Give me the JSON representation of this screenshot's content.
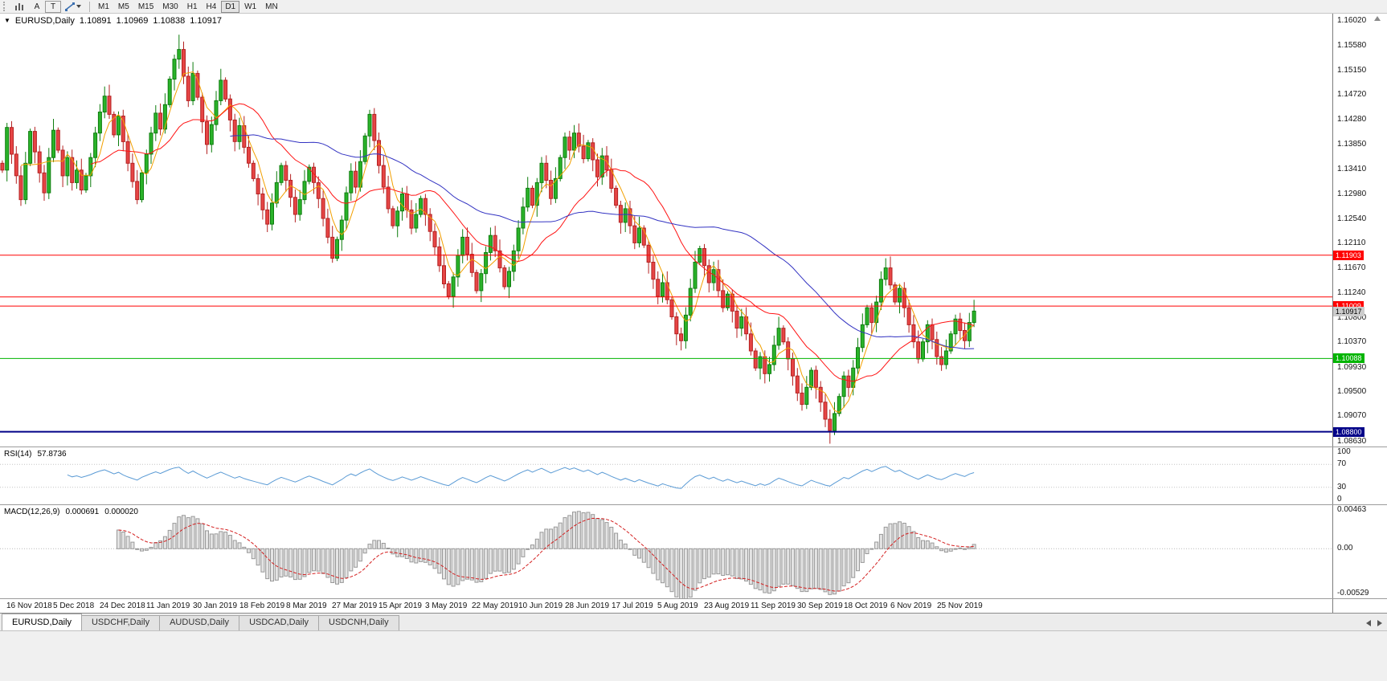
{
  "toolbar": {
    "timeframes": [
      "M1",
      "M5",
      "M15",
      "M30",
      "H1",
      "H4",
      "D1",
      "W1",
      "MN"
    ],
    "active_timeframe": "D1",
    "text_tool_label": "A",
    "template_tool_label": "T"
  },
  "chart": {
    "header": {
      "collapse_glyph": "▼",
      "symbol": "EURUSD,Daily",
      "open": "1.10891",
      "high": "1.10969",
      "low": "1.10838",
      "close": "1.10917"
    },
    "scale": {
      "max": 1.1615,
      "min": 1.0854
    },
    "price_axis_labels": [
      "1.16020",
      "1.15580",
      "1.15150",
      "1.14720",
      "1.14280",
      "1.13850",
      "1.13410",
      "1.12980",
      "1.12540",
      "1.12110",
      "1.11670",
      "1.11240",
      "1.10800",
      "1.10370",
      "1.09930",
      "1.09500",
      "1.09070",
      "1.08630"
    ],
    "hlines": [
      {
        "price": 1.11903,
        "label": "1.11903",
        "color": "#FF0000",
        "width": 1
      },
      {
        "price": 1.1117,
        "color": "#FF0000",
        "width": 1
      },
      {
        "price": 1.11009,
        "label": "1.11009",
        "color": "#FF0000",
        "width": 1
      },
      {
        "price": 1.10088,
        "label": "1.10088",
        "color": "#00B400",
        "width": 1
      },
      {
        "price": 1.088,
        "label": "1.08800",
        "color": "#000088",
        "width": 2
      }
    ],
    "current_price_tag": {
      "label": "1.10917",
      "bg": "#cccccc",
      "fg": "#000000"
    }
  },
  "rsi": {
    "title": "RSI(14)",
    "value": "57.8736",
    "levels": [
      "100",
      "70",
      "30",
      "0"
    ],
    "level_lines": [
      70,
      30
    ],
    "line_color": "#5b9bd5"
  },
  "macd": {
    "title": "MACD(12,26,9)",
    "value1": "0.000691",
    "value2": "0.000020",
    "levels": [
      "0.00463",
      "0.00",
      "-0.00529"
    ],
    "range": {
      "max": 0.0051,
      "min": -0.0058
    },
    "histogram_fill": "#e4e4e4",
    "histogram_stroke": "#989898",
    "signal_color": "#d42020"
  },
  "date_axis": [
    "16 Nov 2018",
    "5 Dec 2018",
    "24 Dec 2018",
    "11 Jan 2019",
    "30 Jan 2019",
    "18 Feb 2019",
    "8 Mar 2019",
    "27 Mar 2019",
    "15 Apr 2019",
    "3 May 2019",
    "22 May 2019",
    "10 Jun 2019",
    "28 Jun 2019",
    "17 Jul 2019",
    "5 Aug 2019",
    "23 Aug 2019",
    "11 Sep 2019",
    "30 Sep 2019",
    "18 Oct 2019",
    "6 Nov 2019",
    "25 Nov 2019"
  ],
  "tabs": {
    "items": [
      "EURUSD,Daily",
      "USDCHF,Daily",
      "AUDUSD,Daily",
      "USDCAD,Daily",
      "USDCNH,Daily"
    ],
    "active": "EURUSD,Daily"
  },
  "chart_data": {
    "type": "candlestick",
    "symbol": "EURUSD",
    "timeframe": "Daily",
    "title": "EURUSD,Daily",
    "y_range": [
      1.0854,
      1.1615
    ],
    "x_labels": [
      "16 Nov 2018",
      "5 Dec 2018",
      "24 Dec 2018",
      "11 Jan 2019",
      "30 Jan 2019",
      "18 Feb 2019",
      "8 Mar 2019",
      "27 Mar 2019",
      "15 Apr 2019",
      "3 May 2019",
      "22 May 2019",
      "10 Jun 2019",
      "28 Jun 2019",
      "17 Jul 2019",
      "5 Aug 2019",
      "23 Aug 2019",
      "11 Sep 2019",
      "30 Sep 2019",
      "18 Oct 2019",
      "6 Nov 2019",
      "25 Nov 2019"
    ],
    "last_bar_ohlc": {
      "open": 1.10891,
      "high": 1.10969,
      "low": 1.10838,
      "close": 1.10917
    },
    "up_color": "#2ab32a",
    "down_color": "#e64545",
    "overlays": [
      {
        "type": "sma",
        "period": 5,
        "color": "#f2a000"
      },
      {
        "type": "sma",
        "period": 20,
        "color": "#ff1414"
      },
      {
        "type": "sma",
        "period": 50,
        "color": "#3333c2"
      }
    ],
    "indicators": [
      {
        "name": "RSI",
        "params": "14",
        "last": "57.8736"
      },
      {
        "name": "MACD",
        "params": "12,26,9",
        "last": [
          "0.000691",
          "0.000020"
        ]
      }
    ],
    "closes": [
      1.134,
      1.1415,
      1.1368,
      1.133,
      1.1288,
      1.1352,
      1.1408,
      1.1372,
      1.1335,
      1.13,
      1.1362,
      1.141,
      1.1375,
      1.133,
      1.1362,
      1.1318,
      1.134,
      1.1305,
      1.133,
      1.1362,
      1.1405,
      1.1442,
      1.147,
      1.1438,
      1.1402,
      1.1435,
      1.139,
      1.1352,
      1.132,
      1.1288,
      1.1335,
      1.1368,
      1.1405,
      1.144,
      1.1412,
      1.1455,
      1.15,
      1.1535,
      1.1552,
      1.1505,
      1.1462,
      1.151,
      1.1468,
      1.1425,
      1.1385,
      1.142,
      1.1462,
      1.1498,
      1.1465,
      1.1428,
      1.139,
      1.1418,
      1.138,
      1.1352,
      1.1325,
      1.1298,
      1.127,
      1.1245,
      1.1282,
      1.1318,
      1.1348,
      1.1322,
      1.1292,
      1.1262,
      1.1288,
      1.132,
      1.1345,
      1.1318,
      1.129,
      1.1255,
      1.1222,
      1.1185,
      1.1218,
      1.1252,
      1.13,
      1.1338,
      1.131,
      1.1355,
      1.14,
      1.1438,
      1.1392,
      1.1348,
      1.131,
      1.1272,
      1.1242,
      1.1268,
      1.1298,
      1.127,
      1.1238,
      1.1262,
      1.129,
      1.1262,
      1.1232,
      1.1205,
      1.1172,
      1.114,
      1.1118,
      1.1152,
      1.119,
      1.1222,
      1.1192,
      1.116,
      1.1128,
      1.1158,
      1.1195,
      1.1225,
      1.1198,
      1.1168,
      1.1135,
      1.1162,
      1.1198,
      1.1238,
      1.1275,
      1.1308,
      1.1278,
      1.1318,
      1.1352,
      1.1322,
      1.129,
      1.1325,
      1.1362,
      1.1398,
      1.1375,
      1.1405,
      1.1382,
      1.136,
      1.1388,
      1.1358,
      1.1328,
      1.1365,
      1.134,
      1.1308,
      1.1278,
      1.1248,
      1.1272,
      1.1242,
      1.1212,
      1.1238,
      1.1208,
      1.1178,
      1.1148,
      1.1118,
      1.1142,
      1.1112,
      1.1082,
      1.1052,
      1.104,
      1.1085,
      1.1132,
      1.1178,
      1.1202,
      1.1172,
      1.1142,
      1.1165,
      1.1128,
      1.1098,
      1.1122,
      1.1092,
      1.1062,
      1.1082,
      1.1052,
      1.1022,
      1.0992,
      1.1012,
      1.0982,
      1.0998,
      1.1032,
      1.1062,
      1.1038,
      1.1008,
      1.0978,
      1.0948,
      1.0928,
      1.0958,
      1.0988,
      1.0958,
      1.0932,
      1.0902,
      1.0882,
      1.0912,
      1.0942,
      1.0978,
      1.0958,
      1.0992,
      1.1028,
      1.1068,
      1.1098,
      1.1072,
      1.1108,
      1.1148,
      1.1168,
      1.1138,
      1.1108,
      1.1132,
      1.1098,
      1.1068,
      1.1038,
      1.1008,
      1.1038,
      1.1068,
      1.1042,
      1.1012,
      1.0998,
      1.1022,
      1.1052,
      1.1078,
      1.1058,
      1.104,
      1.1072,
      1.1092
    ]
  }
}
